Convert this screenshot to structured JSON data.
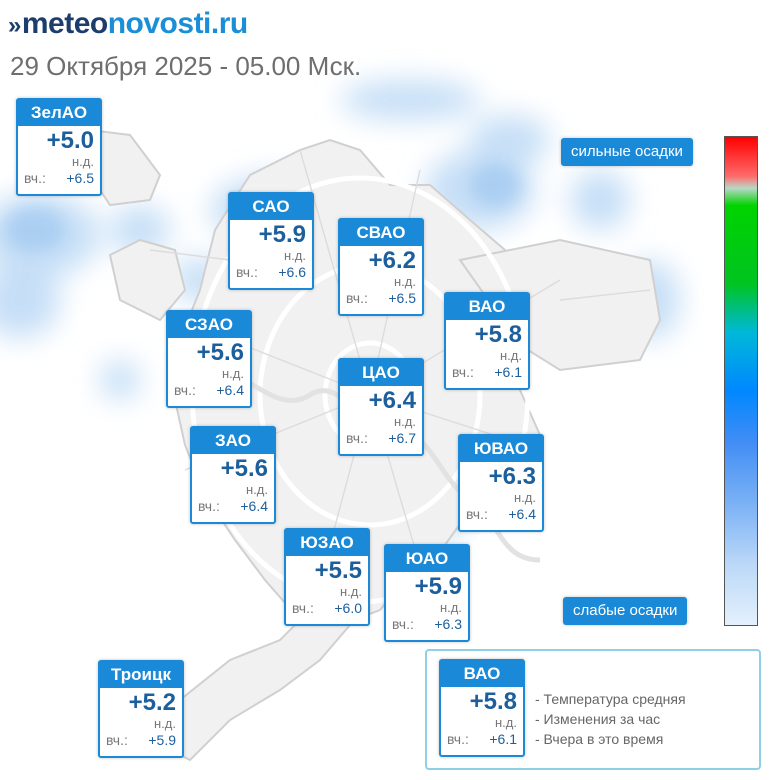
{
  "header": {
    "logo_part1": "meteo",
    "logo_part2": "novosti.ru",
    "subtitle": "29 Октября 2025 - 05.00 Мск."
  },
  "districts": [
    {
      "name": "ЗелАО",
      "temp": "+5.0",
      "change": "н.д.",
      "yesterday_label": "вч.:",
      "yesterday": "+6.5"
    },
    {
      "name": "САО",
      "temp": "+5.9",
      "change": "н.д.",
      "yesterday_label": "вч.:",
      "yesterday": "+6.6"
    },
    {
      "name": "СВАО",
      "temp": "+6.2",
      "change": "н.д.",
      "yesterday_label": "вч.:",
      "yesterday": "+6.5"
    },
    {
      "name": "ВАО",
      "temp": "+5.8",
      "change": "н.д.",
      "yesterday_label": "вч.:",
      "yesterday": "+6.1"
    },
    {
      "name": "СЗАО",
      "temp": "+5.6",
      "change": "н.д.",
      "yesterday_label": "вч.:",
      "yesterday": "+6.4"
    },
    {
      "name": "ЦАО",
      "temp": "+6.4",
      "change": "н.д.",
      "yesterday_label": "вч.:",
      "yesterday": "+6.7"
    },
    {
      "name": "ЗАО",
      "temp": "+5.6",
      "change": "н.д.",
      "yesterday_label": "вч.:",
      "yesterday": "+6.4"
    },
    {
      "name": "ЮВАО",
      "temp": "+6.3",
      "change": "н.д.",
      "yesterday_label": "вч.:",
      "yesterday": "+6.4"
    },
    {
      "name": "ЮЗАО",
      "temp": "+5.5",
      "change": "н.д.",
      "yesterday_label": "вч.:",
      "yesterday": "+6.0"
    },
    {
      "name": "ЮАО",
      "temp": "+5.9",
      "change": "н.д.",
      "yesterday_label": "вч.:",
      "yesterday": "+6.3"
    },
    {
      "name": "Троицк",
      "temp": "+5.2",
      "change": "н.д.",
      "yesterday_label": "вч.:",
      "yesterday": "+5.9"
    }
  ],
  "precip_scale": {
    "top_label": "сильные осадки",
    "bottom_label": "слабые осадки",
    "colors": [
      "#ff0000",
      "#00d300",
      "#0088ff",
      "#e4f0fc"
    ]
  },
  "legend": {
    "example": {
      "name": "ВАО",
      "temp": "+5.8",
      "change": "н.д.",
      "yesterday_label": "вч.:",
      "yesterday": "+6.1"
    },
    "line1": "- Температура средняя",
    "line2": "- Изменения за час",
    "line3": "- Вчера в это время"
  }
}
